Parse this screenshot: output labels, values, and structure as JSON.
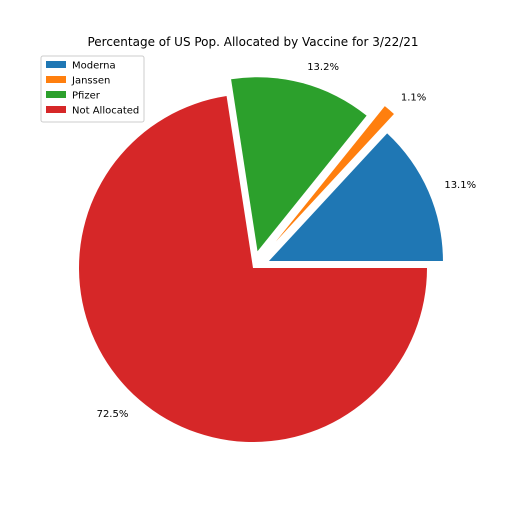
{
  "chart_data": {
    "type": "pie",
    "title": "Percentage of US Pop. Allocated by Vaccine for 3/22/21",
    "categories": [
      "Moderna",
      "Janssen",
      "Pfizer",
      "Not Allocated"
    ],
    "values": [
      13.1,
      1.1,
      13.2,
      72.5
    ],
    "labels": [
      "13.1%",
      "1.1%",
      "13.2%",
      "72.5%"
    ],
    "colors": [
      "#1f77b4",
      "#ff7f0e",
      "#2ca02c",
      "#d62728"
    ],
    "explode": [
      0.1,
      0.2,
      0.1,
      0
    ],
    "start_angle_deg": 0,
    "direction": "counterclockwise",
    "legend": {
      "placement": "top-left",
      "entries": [
        "Moderna",
        "Janssen",
        "Pfizer",
        "Not Allocated"
      ]
    }
  }
}
